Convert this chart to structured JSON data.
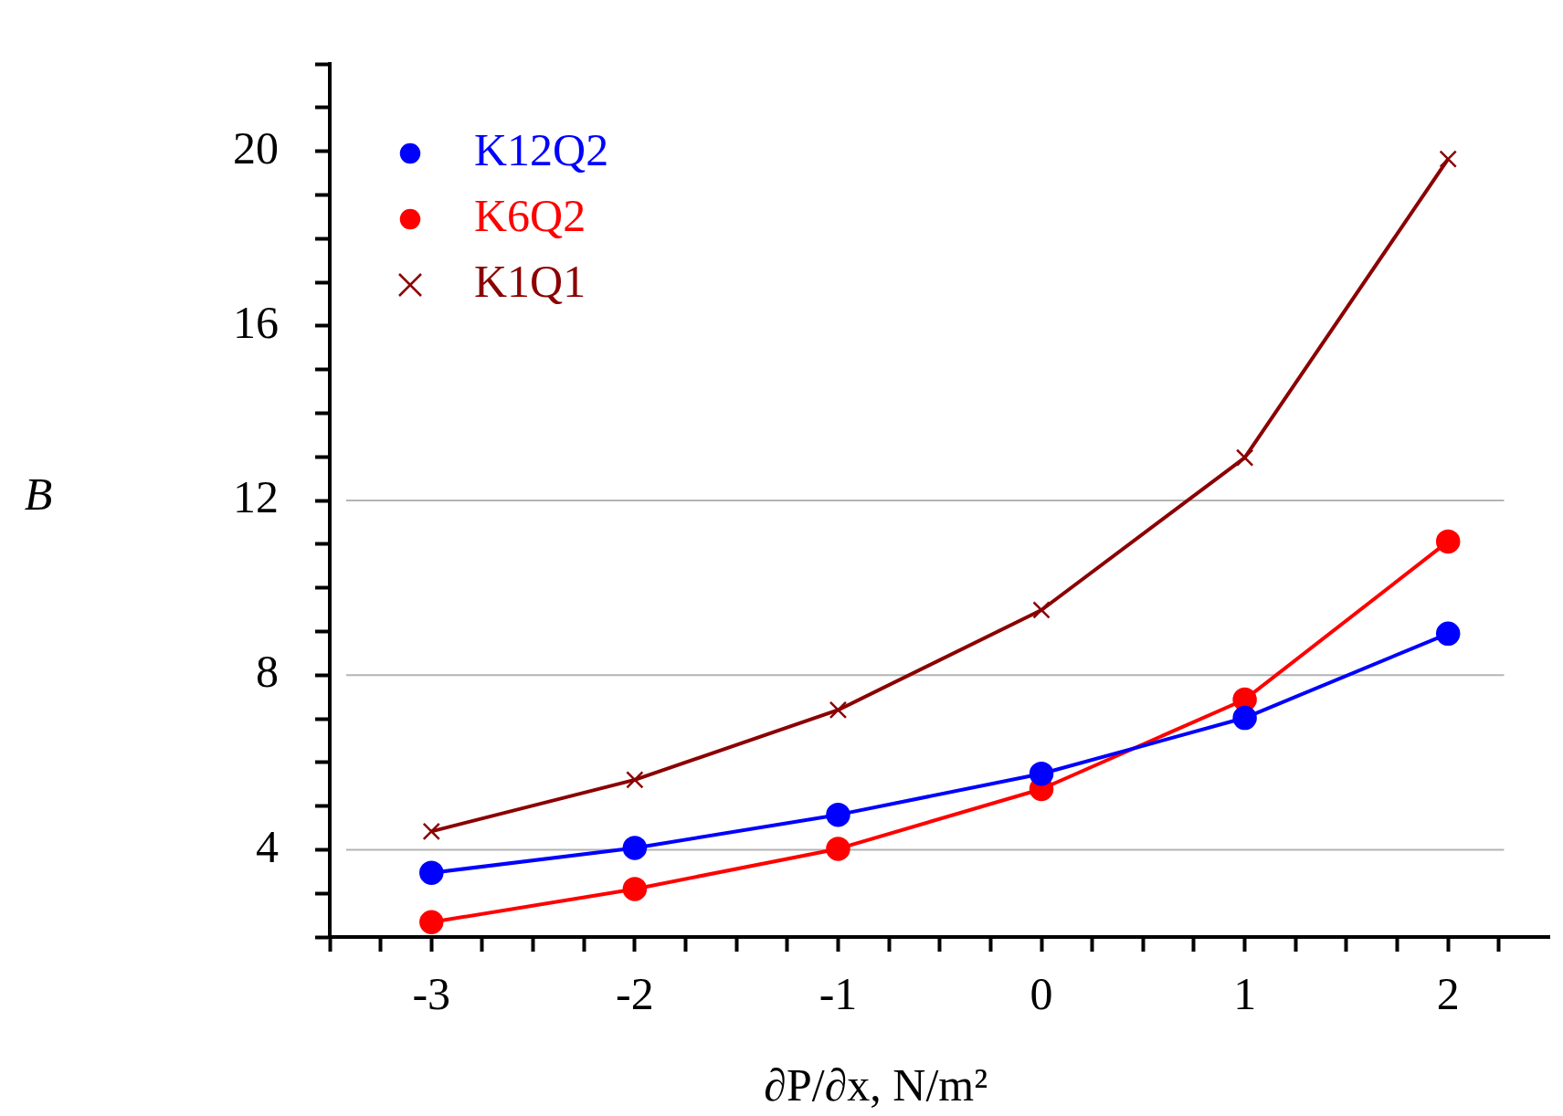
{
  "chart_data": {
    "type": "line",
    "xlabel": "∂P/∂x, N/m²",
    "ylabel": "B",
    "x": [
      -3,
      -2,
      -1,
      0,
      1,
      2
    ],
    "series": [
      {
        "name": "K12Q2",
        "color": "#0000ff",
        "marker": "circle",
        "values": [
          3.47,
          4.04,
          4.8,
          5.74,
          7.02,
          8.95
        ]
      },
      {
        "name": "K6Q2",
        "color": "#ff0000",
        "marker": "circle",
        "values": [
          2.34,
          3.1,
          4.02,
          5.39,
          7.44,
          11.06
        ]
      },
      {
        "name": "K1Q1",
        "color": "#8b0000",
        "marker": "cross",
        "values": [
          4.42,
          5.6,
          7.2,
          9.49,
          12.98,
          19.82
        ]
      }
    ],
    "xlim": [
      -3.5,
      2.5
    ],
    "xticks": [
      {
        "value": -3.5,
        "label": null
      },
      {
        "value": -3.25,
        "label": null
      },
      {
        "value": -3,
        "label": "-3"
      },
      {
        "value": -2.75,
        "label": null
      },
      {
        "value": -2.5,
        "label": null
      },
      {
        "value": -2.25,
        "label": null
      },
      {
        "value": -2,
        "label": "-2"
      },
      {
        "value": -1.75,
        "label": null
      },
      {
        "value": -1.5,
        "label": null
      },
      {
        "value": -1.25,
        "label": null
      },
      {
        "value": -1,
        "label": "-1"
      },
      {
        "value": -0.75,
        "label": null
      },
      {
        "value": -0.5,
        "label": null
      },
      {
        "value": -0.25,
        "label": null
      },
      0,
      {
        "value": 0.25,
        "label": null
      },
      {
        "value": 0.5,
        "label": null
      },
      {
        "value": 0.75,
        "label": null
      },
      1,
      {
        "value": 1.25,
        "label": null
      },
      {
        "value": 1.5,
        "label": null
      },
      {
        "value": 1.75,
        "label": null
      },
      2,
      {
        "value": 2.25,
        "label": null
      }
    ],
    "ylim": [
      2,
      22
    ],
    "yticks": [
      {
        "value": 2,
        "label": null
      },
      {
        "value": 3,
        "label": null
      },
      4,
      {
        "value": 5,
        "label": null
      },
      {
        "value": 6,
        "label": null
      },
      {
        "value": 7,
        "label": null
      },
      8,
      {
        "value": 9,
        "label": null
      },
      {
        "value": 10,
        "label": null
      },
      {
        "value": 11,
        "label": null
      },
      12,
      {
        "value": 13,
        "label": null
      },
      {
        "value": 14,
        "label": null
      },
      {
        "value": 15,
        "label": null
      },
      16,
      {
        "value": 17,
        "label": null
      },
      {
        "value": 18,
        "label": null
      },
      {
        "value": 19,
        "label": null
      },
      20,
      {
        "value": 21,
        "label": null
      },
      {
        "value": 22,
        "label": null
      }
    ],
    "ref_lines": [
      {
        "axis": "y",
        "value": 4,
        "color": "#b4b4b4"
      },
      {
        "axis": "y",
        "value": 8,
        "color": "#b4b4b4"
      },
      {
        "axis": "y",
        "value": 12,
        "color": "#b4b4b4"
      }
    ],
    "legend": "top left",
    "line_style": "solid"
  }
}
